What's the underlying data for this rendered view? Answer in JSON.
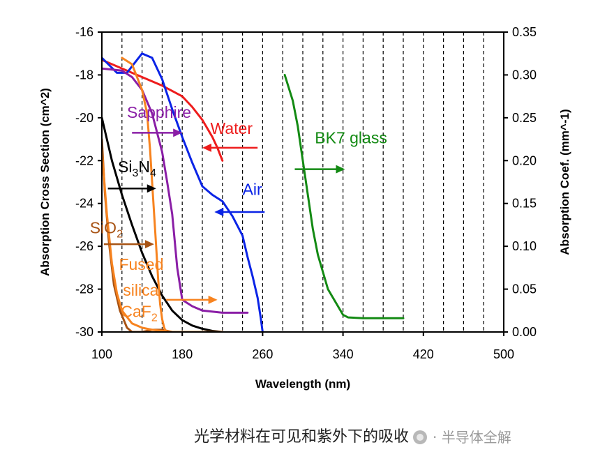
{
  "chart_data": {
    "type": "line",
    "xlabel": "Wavelength (nm)",
    "ylabel_left": "Absorption Cross Section (cm^2)",
    "ylabel_right": "Absorption Coef. (mm^-1)",
    "xlim": [
      100,
      500
    ],
    "ylim_left": [
      -30,
      -16
    ],
    "ylim_right": [
      0,
      0.35
    ],
    "x_ticks": [
      100,
      180,
      260,
      340,
      420,
      500
    ],
    "y_left_ticks": [
      -30,
      -28,
      -26,
      -24,
      -22,
      -20,
      -18,
      -16
    ],
    "y_left_tick_labels": [
      "-30",
      "-28",
      "-26",
      "-24",
      "-22",
      "-20",
      "-18",
      "-16"
    ],
    "y_right_ticks": [
      0,
      0.05,
      0.1,
      0.15,
      0.2,
      0.25,
      0.3,
      0.35
    ],
    "y_right_tick_labels": [
      "0.00",
      "0.05",
      "0.10",
      "0.15",
      "0.20",
      "0.25",
      "0.30",
      "0.35"
    ],
    "grid": "vertical dashed",
    "series": [
      {
        "name": "Water",
        "color": "#ee1c1c",
        "axis": "left",
        "x": [
          100,
          130,
          160,
          180,
          190,
          200,
          210,
          215,
          220
        ],
        "y": [
          -17.3,
          -17.9,
          -18.5,
          -19.0,
          -19.5,
          -20.1,
          -20.9,
          -21.4,
          -22.0
        ]
      },
      {
        "name": "Air",
        "color": "#0b24e6",
        "axis": "left",
        "x": [
          100,
          115,
          125,
          130,
          140,
          150,
          160,
          170,
          180,
          190,
          200,
          210,
          220,
          230,
          240,
          245,
          250,
          255,
          258,
          260
        ],
        "y": [
          -17.2,
          -17.9,
          -17.9,
          -17.6,
          -17.0,
          -17.2,
          -18.2,
          -19.6,
          -20.9,
          -22.1,
          -23.2,
          -23.6,
          -23.9,
          -24.6,
          -25.5,
          -26.5,
          -27.4,
          -28.4,
          -29.3,
          -30.0
        ]
      },
      {
        "name": "Sapphire",
        "color": "#8a1ea6",
        "axis": "left",
        "x": [
          100,
          120,
          130,
          140,
          150,
          160,
          165,
          170,
          172,
          175,
          180,
          190,
          200,
          220,
          240,
          245
        ],
        "y": [
          -17.7,
          -17.8,
          -18.1,
          -18.7,
          -19.8,
          -21.6,
          -23.0,
          -24.5,
          -25.5,
          -27.0,
          -28.5,
          -28.8,
          -29.0,
          -29.1,
          -29.1,
          -29.1
        ]
      },
      {
        "name": "Si3N4",
        "color": "#000000",
        "axis": "left",
        "x": [
          100,
          110,
          120,
          130,
          140,
          150,
          160,
          170,
          180,
          190,
          200,
          210,
          220
        ],
        "y": [
          -20.0,
          -22.0,
          -23.6,
          -25.0,
          -26.3,
          -27.4,
          -28.3,
          -29.0,
          -29.45,
          -29.7,
          -29.85,
          -29.95,
          -30.0
        ]
      },
      {
        "name": "SiO2",
        "color": "#a85314",
        "axis": "left",
        "x": [
          100,
          103,
          107,
          112,
          118,
          125,
          130,
          140,
          150,
          160,
          170
        ],
        "y": [
          -21.0,
          -23.5,
          -25.8,
          -27.8,
          -29.0,
          -29.8,
          -30.0,
          -30.0,
          -29.9,
          -29.9,
          -30.0
        ]
      },
      {
        "name": "Fused silica CaF2",
        "color": "#f7831f",
        "axis": "left",
        "x": [
          100,
          105,
          110,
          115,
          120,
          130,
          140,
          150,
          160,
          170,
          180,
          200,
          220
        ],
        "y": [
          -21.5,
          -24.5,
          -26.8,
          -28.2,
          -29.0,
          -29.6,
          -29.8,
          -29.9,
          -29.95,
          -30.0,
          -30.0,
          -30.0,
          -30.0
        ]
      },
      {
        "name": "Fused silica CaF2 (edge)",
        "color": "#f7831f",
        "axis": "left",
        "x": [
          120,
          130,
          140,
          145,
          148,
          150,
          152,
          154,
          156,
          158,
          160,
          162,
          164
        ],
        "y": [
          -17.2,
          -17.5,
          -18.7,
          -19.8,
          -21.5,
          -23.0,
          -24.5,
          -26.0,
          -27.5,
          -28.7,
          -29.4,
          -29.8,
          -30.0
        ]
      },
      {
        "name": "BK7 glass",
        "color": "#138a13",
        "axis": "right",
        "x": [
          282,
          290,
          295,
          300,
          305,
          310,
          315,
          320,
          325,
          330,
          335,
          340,
          345,
          360,
          380,
          400
        ],
        "y": [
          0.3,
          0.27,
          0.24,
          0.2,
          0.16,
          0.12,
          0.09,
          0.07,
          0.05,
          0.04,
          0.03,
          0.02,
          0.017,
          0.016,
          0.016,
          0.016
        ]
      }
    ],
    "annotations": [
      {
        "text": "Water",
        "color": "#ee1c1c",
        "label_at": [
          208,
          -20.75
        ],
        "arrow_from": [
          255,
          -21.4
        ],
        "arrow_to": [
          200,
          -21.4
        ]
      },
      {
        "text": "Air",
        "color": "#0b24e6",
        "label_at": [
          240,
          -23.6
        ],
        "arrow_from": [
          262,
          -24.4
        ],
        "arrow_to": [
          212,
          -24.4
        ]
      },
      {
        "text": "BK7 glass",
        "color": "#138a13",
        "label_at": [
          312,
          -21.2
        ],
        "arrow_from": [
          292,
          0.19
        ],
        "arrow_to": [
          342,
          0.19
        ],
        "arrow_axis": "right"
      },
      {
        "text": "Sapphire",
        "color": "#8a1ea6",
        "label_at": [
          125,
          -20.0
        ],
        "arrow_from": [
          130,
          -20.7
        ],
        "arrow_to": [
          180,
          -20.7
        ]
      },
      {
        "text": "Si",
        "sub": "3",
        "text2": "N",
        "sub2": "4",
        "color": "#000000",
        "label_at": [
          116,
          -22.55
        ],
        "arrow_from": [
          106,
          -23.3
        ],
        "arrow_to": [
          154,
          -23.3
        ]
      },
      {
        "text": "SiO",
        "sub": "2",
        "color": "#a85314",
        "label_at": [
          88,
          -25.4
        ],
        "arrow_from": [
          102,
          -25.9
        ],
        "arrow_to": [
          152,
          -25.9
        ]
      },
      {
        "text": "Fused",
        "color": "#f7831f",
        "label_at": [
          117,
          -27.1
        ]
      },
      {
        "text": "silica",
        "color": "#f7831f",
        "label_at": [
          121,
          -28.3
        ]
      },
      {
        "text": "CaF",
        "sub": "2",
        "color": "#f7831f",
        "label_at": [
          119,
          -29.3
        ],
        "arrow_from": [
          164,
          -28.5
        ],
        "arrow_to": [
          215,
          -28.5
        ]
      }
    ]
  },
  "caption": "光学材料在可见和紫外下的吸收",
  "watermark": "· 半导体全解"
}
